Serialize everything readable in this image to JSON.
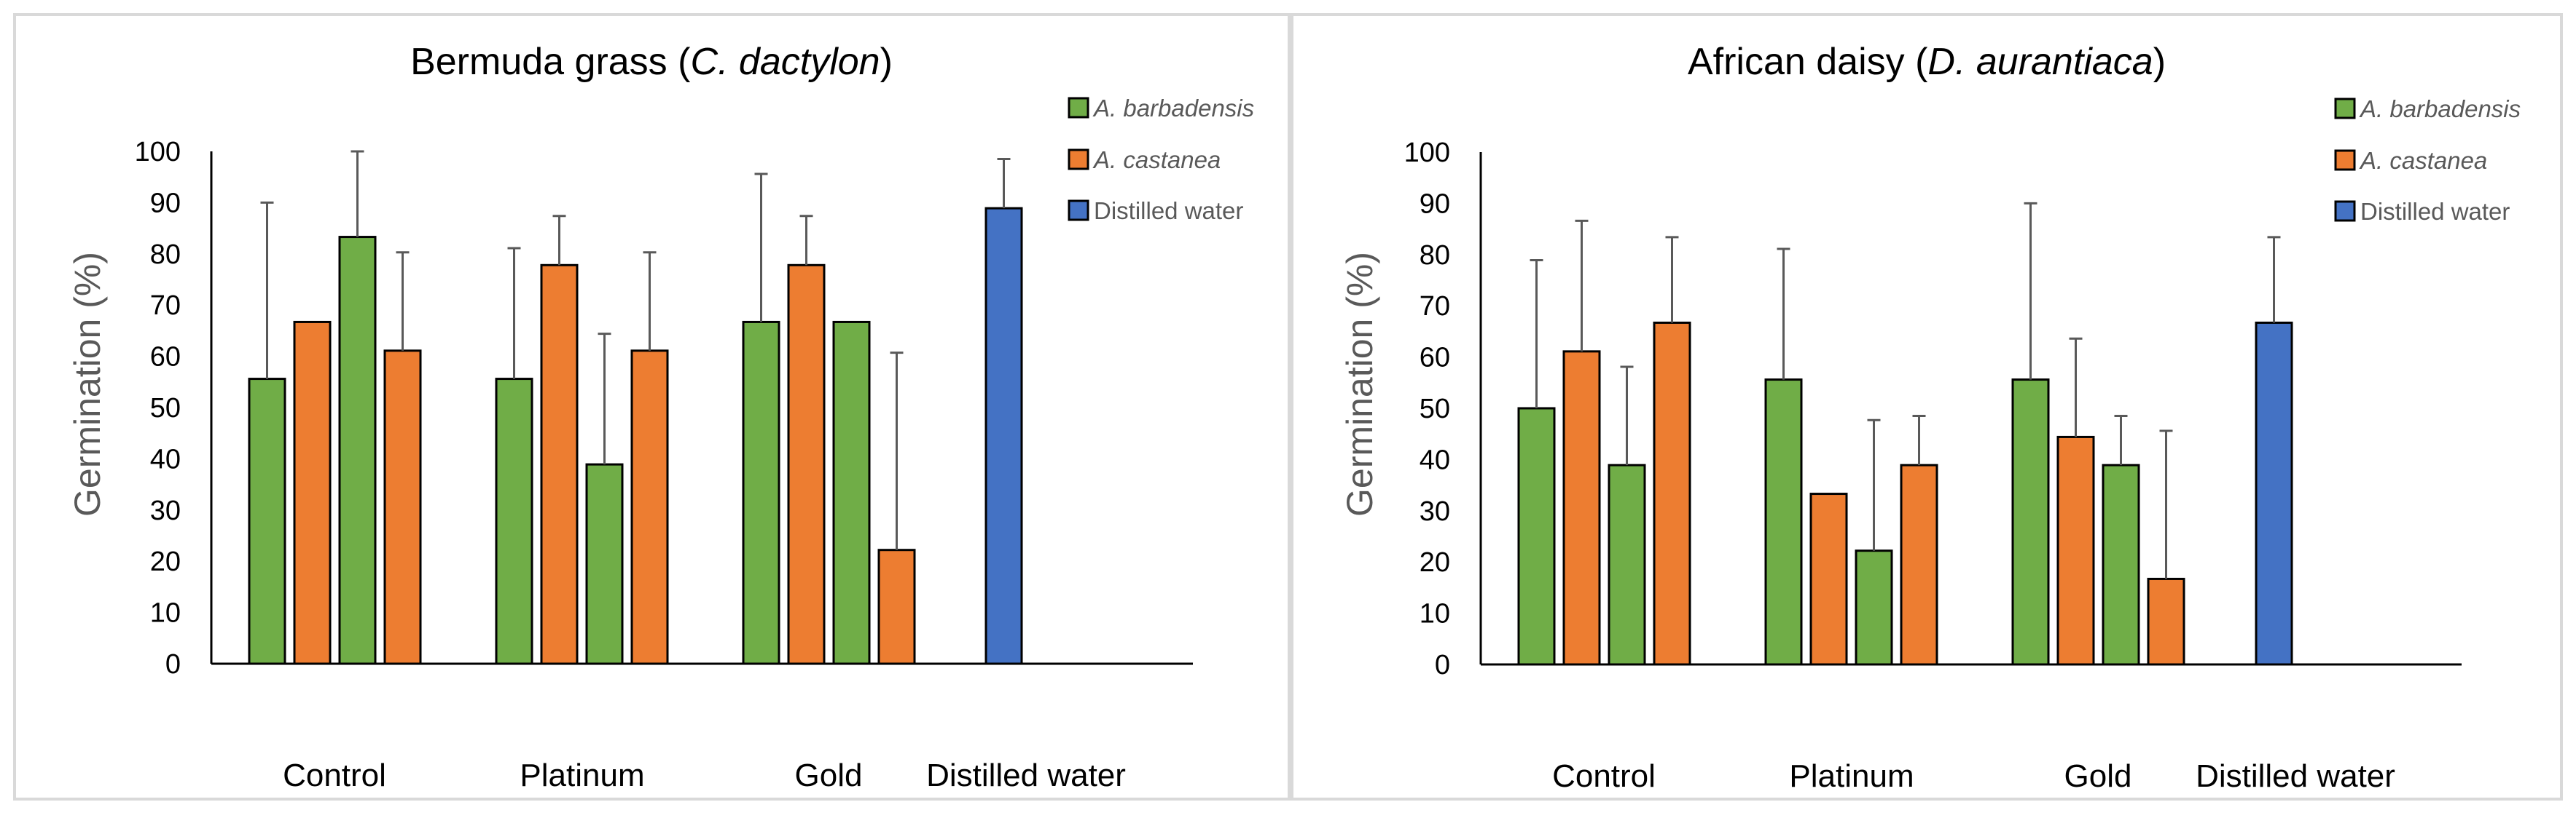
{
  "chart_data": [
    {
      "type": "bar",
      "title_parts": [
        "Bermuda grass (",
        "C. dactylon",
        ")"
      ],
      "ylabel": "Germination (%)",
      "xlabel": "",
      "ylim": [
        0,
        100
      ],
      "yticks": [
        0,
        10,
        20,
        30,
        40,
        50,
        60,
        70,
        80,
        90,
        100
      ],
      "categories": [
        "Control",
        "Platinum",
        "Gold",
        "Distilled water"
      ],
      "legend": [
        {
          "label": "A. barbadensis",
          "color": "#70ad47",
          "italic": true
        },
        {
          "label": "A. castanea",
          "color": "#ed7d31",
          "italic": true
        },
        {
          "label": "Distilled water",
          "color": "#4472c4",
          "italic": false
        }
      ],
      "legend_position": "top-right",
      "bars": [
        {
          "category": "Control",
          "series": "A. barbadensis",
          "color": "#70ad47",
          "value": 55.6,
          "err": 34.4
        },
        {
          "category": "Control",
          "series": "A. castanea",
          "color": "#ed7d31",
          "value": 66.7,
          "err": 0
        },
        {
          "category": "Control",
          "series": "A. barbadensis",
          "color": "#70ad47",
          "value": 83.3,
          "err": 16.7
        },
        {
          "category": "Control",
          "series": "A. castanea",
          "color": "#ed7d31",
          "value": 61.1,
          "err": 19.2
        },
        {
          "category": "Platinum",
          "series": "A. barbadensis",
          "color": "#70ad47",
          "value": 55.6,
          "err": 25.5
        },
        {
          "category": "Platinum",
          "series": "A. castanea",
          "color": "#ed7d31",
          "value": 77.8,
          "err": 9.6
        },
        {
          "category": "Platinum",
          "series": "A. barbadensis",
          "color": "#70ad47",
          "value": 38.9,
          "err": 25.5
        },
        {
          "category": "Platinum",
          "series": "A. castanea",
          "color": "#ed7d31",
          "value": 61.1,
          "err": 19.2
        },
        {
          "category": "Gold",
          "series": "A. barbadensis",
          "color": "#70ad47",
          "value": 66.7,
          "err": 28.9
        },
        {
          "category": "Gold",
          "series": "A. castanea",
          "color": "#ed7d31",
          "value": 77.8,
          "err": 9.6
        },
        {
          "category": "Gold",
          "series": "A. barbadensis",
          "color": "#70ad47",
          "value": 66.7,
          "err": 0
        },
        {
          "category": "Gold",
          "series": "A. castanea",
          "color": "#ed7d31",
          "value": 22.2,
          "err": 38.5
        },
        {
          "category": "Distilled water",
          "series": "Distilled water",
          "color": "#4472c4",
          "value": 88.9,
          "err": 9.6
        }
      ]
    },
    {
      "type": "bar",
      "title_parts": [
        "African daisy (",
        "D. aurantiaca",
        ")"
      ],
      "ylabel": "Germination (%)",
      "xlabel": "",
      "ylim": [
        0,
        100
      ],
      "yticks": [
        0,
        10,
        20,
        30,
        40,
        50,
        60,
        70,
        80,
        90,
        100
      ],
      "categories": [
        "Control",
        "Platinum",
        "Gold",
        "Distilled water"
      ],
      "legend": [
        {
          "label": "A. barbadensis",
          "color": "#70ad47",
          "italic": true
        },
        {
          "label": "A. castanea",
          "color": "#ed7d31",
          "italic": true
        },
        {
          "label": "Distilled water",
          "color": "#4472c4",
          "italic": false
        }
      ],
      "legend_position": "top-right",
      "bars": [
        {
          "category": "Control",
          "series": "A. barbadensis",
          "color": "#70ad47",
          "value": 50.0,
          "err": 28.9
        },
        {
          "category": "Control",
          "series": "A. castanea",
          "color": "#ed7d31",
          "value": 61.1,
          "err": 25.5
        },
        {
          "category": "Control",
          "series": "A. barbadensis",
          "color": "#70ad47",
          "value": 38.9,
          "err": 19.2
        },
        {
          "category": "Control",
          "series": "A. castanea",
          "color": "#ed7d31",
          "value": 66.7,
          "err": 16.7
        },
        {
          "category": "Platinum",
          "series": "A. barbadensis",
          "color": "#70ad47",
          "value": 55.6,
          "err": 25.5
        },
        {
          "category": "Platinum",
          "series": "A. castanea",
          "color": "#ed7d31",
          "value": 33.3,
          "err": 0
        },
        {
          "category": "Platinum",
          "series": "A. barbadensis",
          "color": "#70ad47",
          "value": 22.2,
          "err": 25.5
        },
        {
          "category": "Platinum",
          "series": "A. castanea",
          "color": "#ed7d31",
          "value": 38.9,
          "err": 9.6
        },
        {
          "category": "Gold",
          "series": "A. barbadensis",
          "color": "#70ad47",
          "value": 55.6,
          "err": 34.4
        },
        {
          "category": "Gold",
          "series": "A. castanea",
          "color": "#ed7d31",
          "value": 44.4,
          "err": 19.2
        },
        {
          "category": "Gold",
          "series": "A. barbadensis",
          "color": "#70ad47",
          "value": 38.9,
          "err": 9.6
        },
        {
          "category": "Gold",
          "series": "A. castanea",
          "color": "#ed7d31",
          "value": 16.7,
          "err": 28.9
        },
        {
          "category": "Distilled water",
          "series": "Distilled water",
          "color": "#4472c4",
          "value": 66.7,
          "err": 16.7
        }
      ]
    }
  ]
}
